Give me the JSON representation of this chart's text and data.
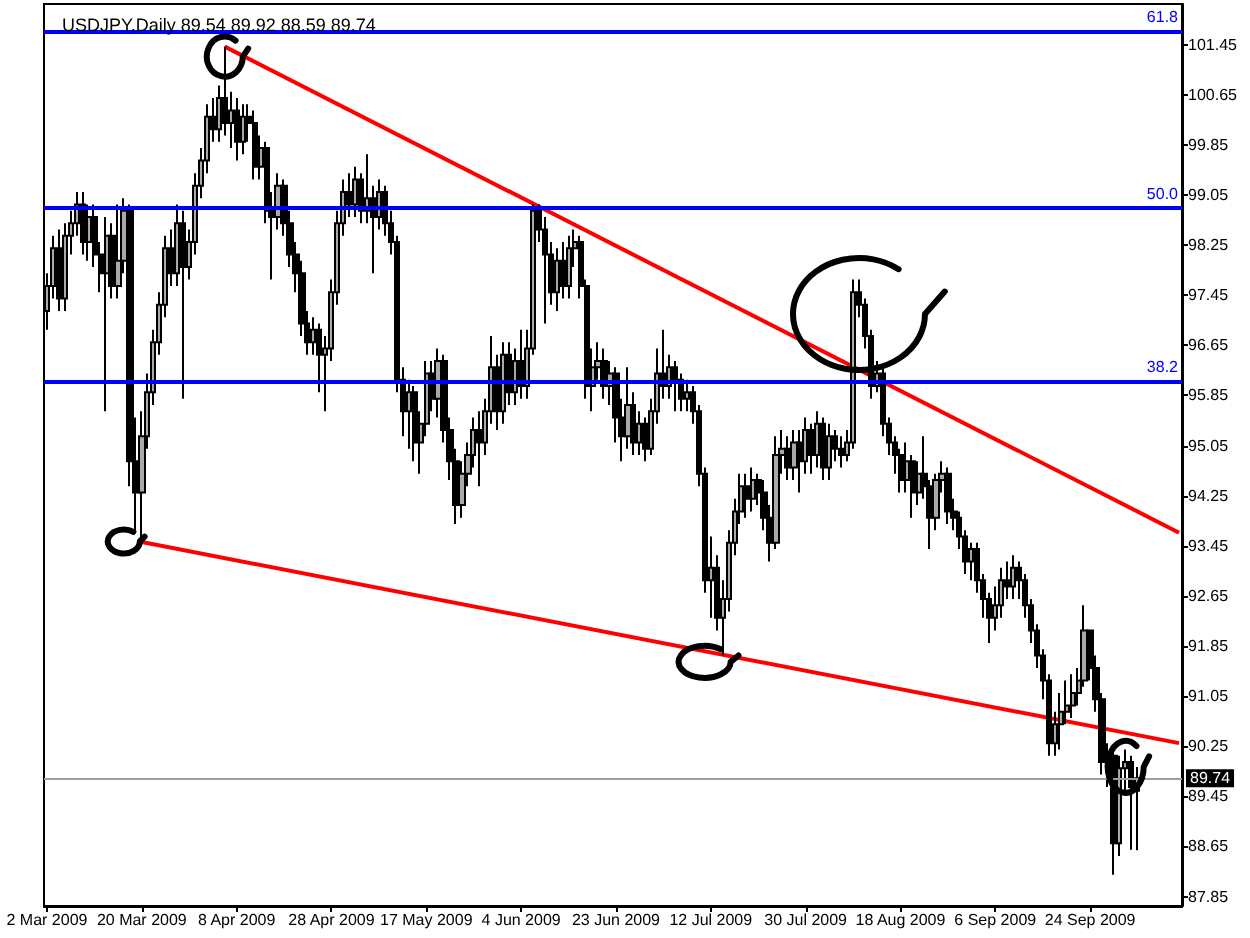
{
  "chart_data": {
    "type": "candlestick",
    "title": "USDJPY,Daily 89.54 89.92 88.59 89.74",
    "categories": [
      "2 Mar 2009",
      null,
      null,
      null,
      null,
      null,
      null,
      null,
      null,
      null,
      null,
      null,
      null,
      null,
      null,
      null,
      "20 Mar 2009",
      null,
      null,
      null,
      null,
      null,
      null,
      null,
      null,
      null,
      null,
      null,
      null,
      null,
      null,
      null,
      "8 Apr 2009",
      null,
      null,
      null,
      null,
      null,
      null,
      null,
      null,
      null,
      null,
      null,
      null,
      null,
      null,
      null,
      "28 Apr 2009",
      null,
      null,
      null,
      null,
      null,
      null,
      null,
      null,
      null,
      null,
      null,
      null,
      null,
      null,
      null,
      "17 May 2009",
      null,
      null,
      null,
      null,
      null,
      null,
      null,
      null,
      null,
      null,
      null,
      null,
      null,
      null,
      null,
      "4 Jun 2009",
      null,
      null,
      null,
      null,
      null,
      null,
      null,
      null,
      null,
      null,
      null,
      null,
      null,
      null,
      null,
      "23 Jun 2009",
      null,
      null,
      null,
      null,
      null,
      null,
      null,
      null,
      null,
      null,
      null,
      null,
      null,
      null,
      null,
      "12 Jul 2009",
      null,
      null,
      null,
      null,
      null,
      null,
      null,
      null,
      null,
      null,
      null,
      null,
      null,
      null,
      null,
      "30 Jul 2009",
      null,
      null,
      null,
      null,
      null,
      null,
      null,
      null,
      null,
      null,
      null,
      null,
      null,
      null,
      null,
      "18 Aug 2009",
      null,
      null,
      null,
      null,
      null,
      null,
      null,
      null,
      null,
      null,
      null,
      null,
      null,
      null,
      null,
      "6 Sep 2009",
      null,
      null,
      null,
      null,
      null,
      null,
      null,
      null,
      null,
      null,
      null,
      null,
      null,
      null,
      null,
      "24 Sep 2009",
      null,
      null,
      null,
      null,
      null,
      null,
      null,
      null,
      null,
      null,
      null,
      null,
      null,
      null,
      null
    ],
    "annotations": [
      {
        "text": "61.8",
        "y": 101.67
      },
      {
        "text": "50.0",
        "y": 98.84
      },
      {
        "text": "38.2",
        "y": 96.08
      }
    ],
    "ylim": [
      87.7,
      102.1
    ],
    "yticks": [
      87.85,
      88.65,
      89.45,
      90.25,
      91.05,
      91.85,
      92.65,
      93.45,
      94.25,
      95.05,
      95.85,
      96.65,
      97.45,
      98.25,
      99.05,
      99.85,
      100.65,
      101.45
    ],
    "ref_lines": [
      {
        "axis": "y",
        "value": 101.67,
        "color": "#0000ff"
      },
      {
        "axis": "y",
        "value": 98.84,
        "color": "#0000ff"
      },
      {
        "axis": "y",
        "value": 96.08,
        "color": "#0000ff"
      },
      {
        "axis": "y",
        "value": 89.74,
        "label": "89.74",
        "color": "#a0a0a0"
      }
    ],
    "series": [
      {
        "type": "candlestick",
        "color": "#000000",
        "ohlc": [
          [
            97.2,
            97.8,
            96.9,
            97.6
          ],
          [
            97.6,
            98.4,
            97.4,
            98.2
          ],
          [
            98.2,
            98.5,
            97.2,
            97.4
          ],
          [
            97.4,
            98.6,
            97.2,
            98.4
          ],
          [
            98.4,
            98.8,
            98.1,
            98.6
          ],
          [
            98.6,
            99.1,
            98.4,
            98.9
          ],
          [
            98.9,
            99.1,
            98.1,
            98.3
          ],
          [
            98.3,
            98.9,
            98.0,
            98.7
          ],
          [
            98.7,
            98.9,
            97.9,
            98.1
          ],
          [
            98.1,
            98.3,
            97.5,
            97.8
          ],
          [
            97.8,
            98.7,
            95.6,
            98.4
          ],
          [
            98.4,
            98.6,
            97.4,
            97.6
          ],
          [
            97.6,
            98.9,
            97.4,
            98.0
          ],
          [
            98.0,
            99.0,
            97.8,
            98.8
          ],
          [
            98.8,
            98.9,
            94.4,
            94.8
          ],
          [
            94.8,
            95.5,
            93.7,
            94.3
          ],
          [
            94.3,
            95.6,
            93.5,
            95.2
          ],
          [
            95.2,
            96.2,
            95.0,
            95.9
          ],
          [
            95.9,
            96.9,
            95.7,
            96.7
          ],
          [
            96.7,
            97.5,
            96.5,
            97.3
          ],
          [
            97.3,
            98.4,
            97.1,
            98.2
          ],
          [
            98.2,
            98.5,
            97.6,
            97.8
          ],
          [
            97.8,
            98.9,
            97.6,
            98.6
          ],
          [
            98.6,
            98.8,
            95.8,
            97.9
          ],
          [
            97.9,
            98.5,
            97.7,
            98.3
          ],
          [
            98.3,
            99.4,
            98.1,
            99.2
          ],
          [
            99.2,
            99.8,
            99.0,
            99.6
          ],
          [
            99.6,
            100.5,
            99.4,
            100.3
          ],
          [
            100.3,
            100.6,
            99.9,
            100.1
          ],
          [
            100.1,
            100.8,
            99.9,
            100.6
          ],
          [
            100.6,
            101.42,
            100.0,
            100.2
          ],
          [
            100.2,
            100.7,
            99.8,
            100.4
          ],
          [
            100.4,
            100.6,
            99.6,
            99.9
          ],
          [
            99.9,
            100.5,
            99.7,
            100.3
          ],
          [
            100.3,
            100.5,
            99.9,
            100.2
          ],
          [
            100.2,
            100.4,
            99.3,
            99.5
          ],
          [
            99.5,
            100.0,
            99.3,
            99.8
          ],
          [
            99.8,
            99.9,
            98.6,
            98.8
          ],
          [
            98.8,
            99.1,
            97.7,
            98.7
          ],
          [
            98.7,
            99.4,
            98.5,
            99.2
          ],
          [
            99.2,
            99.3,
            98.4,
            98.6
          ],
          [
            98.6,
            98.8,
            97.9,
            98.1
          ],
          [
            98.1,
            98.3,
            97.5,
            97.8
          ],
          [
            97.8,
            98.0,
            96.8,
            97.0
          ],
          [
            97.0,
            97.2,
            96.5,
            96.7
          ],
          [
            96.7,
            97.1,
            96.5,
            96.9
          ],
          [
            96.9,
            97.0,
            95.9,
            96.5
          ],
          [
            96.5,
            96.8,
            95.6,
            96.6
          ],
          [
            96.6,
            97.7,
            96.4,
            97.5
          ],
          [
            97.5,
            98.8,
            97.3,
            98.6
          ],
          [
            98.6,
            99.3,
            98.4,
            99.1
          ],
          [
            99.1,
            99.4,
            98.7,
            98.9
          ],
          [
            98.9,
            99.5,
            98.7,
            99.3
          ],
          [
            99.3,
            99.4,
            98.6,
            98.8
          ],
          [
            98.8,
            99.7,
            98.6,
            99.0
          ],
          [
            99.0,
            99.2,
            97.8,
            98.7
          ],
          [
            98.7,
            99.3,
            98.5,
            99.1
          ],
          [
            99.1,
            99.2,
            98.4,
            98.6
          ],
          [
            98.6,
            98.8,
            98.1,
            98.3
          ],
          [
            98.3,
            98.4,
            95.9,
            96.1
          ],
          [
            96.1,
            96.3,
            95.2,
            95.6
          ],
          [
            95.6,
            96.1,
            95.0,
            95.9
          ],
          [
            95.9,
            96.0,
            94.8,
            95.1
          ],
          [
            95.1,
            95.6,
            94.6,
            95.4
          ],
          [
            95.4,
            96.4,
            95.2,
            96.2
          ],
          [
            96.2,
            96.4,
            95.6,
            95.8
          ],
          [
            95.8,
            96.6,
            95.5,
            96.4
          ],
          [
            96.4,
            96.5,
            95.1,
            95.3
          ],
          [
            95.3,
            95.5,
            94.5,
            94.8
          ],
          [
            94.8,
            95.0,
            93.8,
            94.1
          ],
          [
            94.1,
            94.8,
            93.9,
            94.6
          ],
          [
            94.6,
            95.1,
            94.4,
            94.9
          ],
          [
            94.9,
            95.5,
            94.7,
            95.3
          ],
          [
            95.3,
            95.6,
            94.4,
            95.1
          ],
          [
            95.1,
            95.8,
            94.9,
            95.6
          ],
          [
            95.6,
            96.8,
            95.4,
            96.3
          ],
          [
            96.3,
            96.5,
            95.3,
            95.6
          ],
          [
            95.6,
            96.7,
            95.4,
            96.5
          ],
          [
            96.5,
            96.7,
            95.7,
            95.9
          ],
          [
            95.9,
            96.6,
            95.7,
            96.4
          ],
          [
            96.4,
            96.9,
            95.8,
            96.0
          ],
          [
            96.0,
            96.9,
            95.8,
            96.6
          ],
          [
            96.6,
            98.9,
            96.5,
            98.8
          ],
          [
            98.8,
            98.9,
            98.3,
            98.5
          ],
          [
            98.5,
            98.7,
            97.0,
            98.1
          ],
          [
            98.1,
            98.3,
            97.3,
            97.5
          ],
          [
            97.5,
            98.2,
            97.2,
            98.0
          ],
          [
            98.0,
            98.3,
            97.4,
            97.6
          ],
          [
            97.6,
            98.4,
            97.4,
            98.2
          ],
          [
            98.2,
            98.5,
            97.9,
            98.3
          ],
          [
            98.3,
            98.4,
            97.4,
            97.6
          ],
          [
            97.6,
            97.7,
            95.8,
            96.0
          ],
          [
            96.0,
            96.6,
            95.6,
            96.3
          ],
          [
            96.3,
            96.7,
            96.1,
            96.4
          ],
          [
            96.4,
            96.6,
            95.8,
            96.0
          ],
          [
            96.0,
            96.4,
            95.7,
            96.2
          ],
          [
            96.2,
            96.3,
            95.1,
            95.5
          ],
          [
            95.5,
            95.8,
            94.8,
            95.2
          ],
          [
            95.2,
            96.3,
            95.0,
            95.7
          ],
          [
            95.7,
            95.9,
            94.9,
            95.1
          ],
          [
            95.1,
            95.6,
            94.9,
            95.4
          ],
          [
            95.4,
            95.5,
            94.8,
            95.0
          ],
          [
            95.0,
            95.8,
            94.9,
            95.6
          ],
          [
            95.6,
            96.6,
            95.4,
            96.2
          ],
          [
            96.2,
            96.9,
            95.8,
            96.0
          ],
          [
            96.0,
            96.5,
            95.8,
            96.3
          ],
          [
            96.3,
            96.4,
            95.6,
            96.1
          ],
          [
            96.1,
            96.2,
            95.6,
            95.8
          ],
          [
            95.8,
            96.1,
            95.6,
            95.9
          ],
          [
            95.9,
            96.0,
            95.4,
            95.6
          ],
          [
            95.6,
            95.7,
            94.4,
            94.6
          ],
          [
            94.6,
            94.7,
            92.7,
            92.9
          ],
          [
            92.9,
            93.6,
            92.3,
            93.1
          ],
          [
            93.1,
            93.3,
            92.1,
            92.3
          ],
          [
            92.3,
            92.9,
            91.7,
            92.6
          ],
          [
            92.6,
            93.7,
            92.4,
            93.5
          ],
          [
            93.5,
            94.2,
            93.3,
            94.0
          ],
          [
            94.0,
            94.6,
            93.8,
            94.4
          ],
          [
            94.4,
            94.6,
            93.9,
            94.2
          ],
          [
            94.2,
            94.7,
            94.0,
            94.5
          ],
          [
            94.5,
            94.6,
            94.1,
            94.3
          ],
          [
            94.3,
            94.5,
            93.7,
            93.9
          ],
          [
            93.9,
            94.1,
            93.2,
            93.5
          ],
          [
            93.5,
            95.2,
            93.4,
            94.9
          ],
          [
            94.9,
            95.3,
            94.6,
            95.0
          ],
          [
            95.0,
            95.2,
            94.5,
            94.7
          ],
          [
            94.7,
            95.3,
            94.5,
            95.1
          ],
          [
            95.1,
            95.3,
            94.3,
            94.8
          ],
          [
            94.8,
            95.5,
            94.6,
            95.3
          ],
          [
            95.3,
            95.4,
            94.6,
            94.9
          ],
          [
            94.9,
            95.6,
            94.7,
            95.4
          ],
          [
            95.4,
            95.5,
            94.5,
            94.7
          ],
          [
            94.7,
            95.4,
            94.5,
            95.2
          ],
          [
            95.2,
            95.3,
            94.8,
            95.0
          ],
          [
            95.0,
            95.2,
            94.7,
            94.9
          ],
          [
            94.9,
            95.3,
            94.8,
            95.1
          ],
          [
            95.1,
            97.7,
            95.0,
            97.5
          ],
          [
            97.5,
            97.7,
            97.1,
            97.3
          ],
          [
            97.3,
            97.4,
            96.6,
            96.8
          ],
          [
            96.8,
            96.9,
            95.8,
            96.0
          ],
          [
            96.0,
            96.4,
            95.9,
            96.2
          ],
          [
            96.2,
            96.3,
            95.2,
            95.4
          ],
          [
            95.4,
            95.5,
            94.9,
            95.1
          ],
          [
            95.1,
            95.2,
            94.6,
            94.9
          ],
          [
            94.9,
            95.0,
            94.3,
            94.5
          ],
          [
            94.5,
            95.1,
            94.3,
            94.8
          ],
          [
            94.8,
            94.9,
            93.9,
            94.3
          ],
          [
            94.3,
            94.8,
            94.1,
            94.6
          ],
          [
            94.6,
            95.2,
            94.2,
            94.4
          ],
          [
            94.4,
            94.5,
            93.4,
            93.9
          ],
          [
            93.9,
            94.6,
            93.7,
            94.5
          ],
          [
            94.5,
            94.8,
            94.3,
            94.6
          ],
          [
            94.6,
            94.7,
            93.8,
            94.0
          ],
          [
            94.0,
            94.2,
            93.7,
            93.9
          ],
          [
            93.9,
            94.0,
            93.4,
            93.6
          ],
          [
            93.6,
            93.7,
            93.0,
            93.2
          ],
          [
            93.2,
            93.5,
            92.9,
            93.4
          ],
          [
            93.4,
            93.5,
            92.7,
            92.9
          ],
          [
            92.9,
            93.0,
            92.3,
            92.6
          ],
          [
            92.6,
            92.7,
            91.9,
            92.3
          ],
          [
            92.3,
            92.8,
            92.1,
            92.5
          ],
          [
            92.5,
            93.1,
            92.3,
            92.9
          ],
          [
            92.9,
            93.2,
            92.6,
            92.8
          ],
          [
            92.8,
            93.3,
            92.6,
            93.1
          ],
          [
            93.1,
            93.2,
            92.6,
            92.9
          ],
          [
            92.9,
            93.0,
            92.3,
            92.5
          ],
          [
            92.5,
            92.6,
            91.9,
            92.1
          ],
          [
            92.1,
            92.2,
            91.5,
            91.7
          ],
          [
            91.7,
            91.8,
            91.0,
            91.3
          ],
          [
            91.3,
            91.4,
            90.1,
            90.3
          ],
          [
            90.3,
            90.8,
            90.1,
            90.6
          ],
          [
            90.6,
            91.1,
            90.2,
            90.8
          ],
          [
            90.8,
            91.3,
            90.6,
            90.9
          ],
          [
            90.9,
            91.4,
            90.7,
            91.1
          ],
          [
            91.1,
            91.5,
            90.9,
            91.3
          ],
          [
            91.3,
            92.5,
            91.2,
            92.1
          ],
          [
            92.1,
            92.1,
            91.3,
            91.5
          ],
          [
            91.5,
            91.7,
            90.8,
            91.0
          ],
          [
            91.0,
            91.1,
            89.8,
            90.0
          ],
          [
            90.0,
            90.3,
            89.6,
            90.1
          ],
          [
            90.1,
            90.2,
            88.2,
            88.7
          ],
          [
            88.7,
            90.1,
            88.5,
            89.9
          ],
          [
            89.9,
            90.2,
            89.5,
            90.0
          ],
          [
            90.0,
            90.1,
            88.6,
            89.6
          ],
          [
            89.54,
            89.92,
            88.59,
            89.74
          ],
          null,
          null,
          null,
          null,
          null,
          null,
          null
        ]
      },
      {
        "type": "line",
        "color": "#ff0000",
        "marker": "none",
        "values": [
          null,
          null,
          null,
          null,
          null,
          null,
          null,
          null,
          null,
          null,
          null,
          null,
          null,
          null,
          null,
          null,
          null,
          null,
          null,
          null,
          null,
          null,
          null,
          null,
          null,
          null,
          null,
          null,
          null,
          null,
          101.42,
          null,
          null,
          null,
          null,
          null,
          null,
          null,
          null,
          null,
          null,
          null,
          null,
          null,
          null,
          null,
          null,
          null,
          null,
          null,
          null,
          null,
          null,
          null,
          null,
          null,
          null,
          null,
          null,
          null,
          null,
          null,
          null,
          null,
          null,
          null,
          null,
          null,
          null,
          null,
          null,
          null,
          null,
          null,
          null,
          null,
          null,
          null,
          null,
          null,
          null,
          null,
          null,
          null,
          null,
          null,
          null,
          null,
          null,
          null,
          null,
          null,
          null,
          null,
          null,
          null,
          null,
          null,
          null,
          null,
          null,
          null,
          null,
          null,
          null,
          null,
          null,
          null,
          null,
          null,
          null,
          null,
          null,
          null,
          null,
          null,
          null,
          null,
          null,
          null,
          null,
          null,
          null,
          null,
          null,
          null,
          null,
          null,
          null,
          null,
          null,
          null,
          null,
          null,
          null,
          null,
          null,
          null,
          null,
          null,
          null,
          null,
          null,
          null,
          null,
          null,
          null,
          null,
          null,
          null,
          null,
          null,
          null,
          null,
          null,
          null,
          null,
          null,
          null,
          null,
          null,
          null,
          null,
          null,
          null,
          null,
          null,
          null,
          null,
          null,
          null,
          null,
          null,
          null,
          null,
          null,
          null,
          null,
          null,
          null,
          null,
          null,
          null,
          null,
          null,
          null,
          null,
          null,
          null,
          null,
          null,
          93.66
        ]
      },
      {
        "type": "line",
        "color": "#ff0000",
        "marker": "none",
        "values": [
          null,
          null,
          null,
          null,
          null,
          null,
          null,
          null,
          null,
          null,
          null,
          null,
          null,
          null,
          null,
          null,
          93.51,
          null,
          null,
          null,
          null,
          null,
          null,
          null,
          null,
          null,
          null,
          null,
          null,
          null,
          null,
          null,
          null,
          null,
          null,
          null,
          null,
          null,
          null,
          null,
          null,
          null,
          null,
          null,
          null,
          null,
          null,
          null,
          null,
          null,
          null,
          null,
          null,
          null,
          null,
          null,
          null,
          null,
          null,
          null,
          null,
          null,
          null,
          null,
          null,
          null,
          null,
          null,
          null,
          null,
          null,
          null,
          null,
          null,
          null,
          null,
          null,
          null,
          null,
          null,
          null,
          null,
          null,
          null,
          null,
          null,
          null,
          null,
          null,
          null,
          null,
          null,
          null,
          null,
          null,
          null,
          null,
          null,
          null,
          null,
          null,
          null,
          null,
          null,
          null,
          null,
          null,
          null,
          null,
          null,
          null,
          null,
          null,
          null,
          null,
          null,
          null,
          null,
          null,
          null,
          null,
          null,
          null,
          null,
          null,
          null,
          null,
          null,
          null,
          null,
          null,
          null,
          null,
          null,
          null,
          null,
          null,
          null,
          null,
          null,
          null,
          null,
          null,
          null,
          null,
          null,
          null,
          null,
          null,
          null,
          null,
          null,
          null,
          null,
          null,
          null,
          null,
          null,
          null,
          null,
          null,
          null,
          null,
          null,
          null,
          null,
          null,
          null,
          null,
          null,
          null,
          null,
          null,
          null,
          null,
          null,
          null,
          null,
          null,
          null,
          null,
          null,
          null,
          null,
          null,
          null,
          null,
          null,
          null,
          null,
          null,
          90.3
        ]
      }
    ]
  }
}
